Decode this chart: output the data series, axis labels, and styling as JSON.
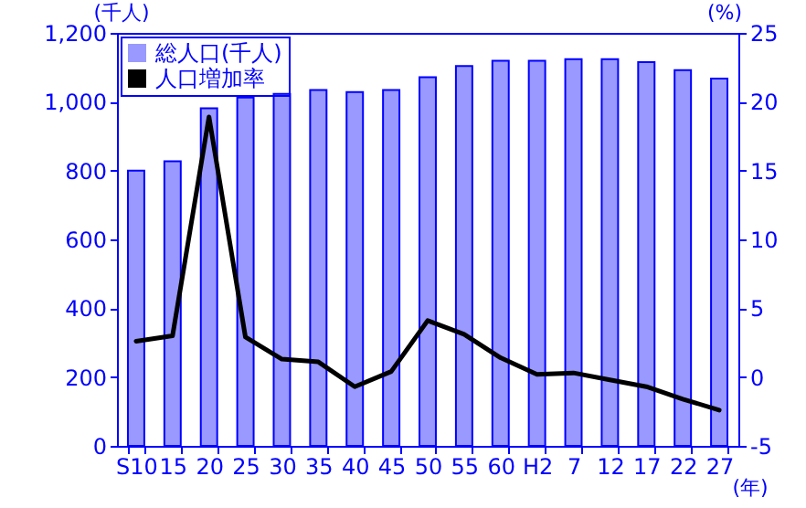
{
  "chart_data": {
    "type": "bar",
    "xlabel": "(年)",
    "ylabel": "(千人)",
    "y2label": "(%)",
    "categories": [
      "S10",
      "15",
      "20",
      "25",
      "30",
      "35",
      "40",
      "45",
      "50",
      "55",
      "60",
      "H2",
      "7",
      "12",
      "17",
      "22",
      "27"
    ],
    "series": [
      {
        "name": "総人口(千人)",
        "color": "#9999ff",
        "values": [
          800,
          827,
          981,
          1012,
          1023,
          1034,
          1028,
          1034,
          1071,
          1104,
          1119,
          1119,
          1124,
          1124,
          1115,
          1092,
          1067
        ]
      },
      {
        "name": "人口増加率",
        "type": "line",
        "axis": "y2",
        "color": "#000000",
        "values": [
          2.6,
          3.0,
          18.9,
          2.9,
          1.3,
          1.1,
          -0.7,
          0.4,
          4.1,
          3.1,
          1.4,
          0.2,
          0.3,
          -0.2,
          -0.7,
          -1.6,
          -2.4
        ]
      }
    ],
    "ylim": [
      0,
      1200
    ],
    "yticks": [
      0,
      200,
      400,
      600,
      800,
      {
        "value": 1000,
        "label": "1,000"
      },
      {
        "value": 1200,
        "label": "1,200"
      }
    ],
    "y2lim": [
      -5,
      25
    ],
    "y2ticks": [
      -5,
      0,
      5,
      10,
      15,
      20,
      25
    ],
    "legend": "top left",
    "grid": false
  }
}
